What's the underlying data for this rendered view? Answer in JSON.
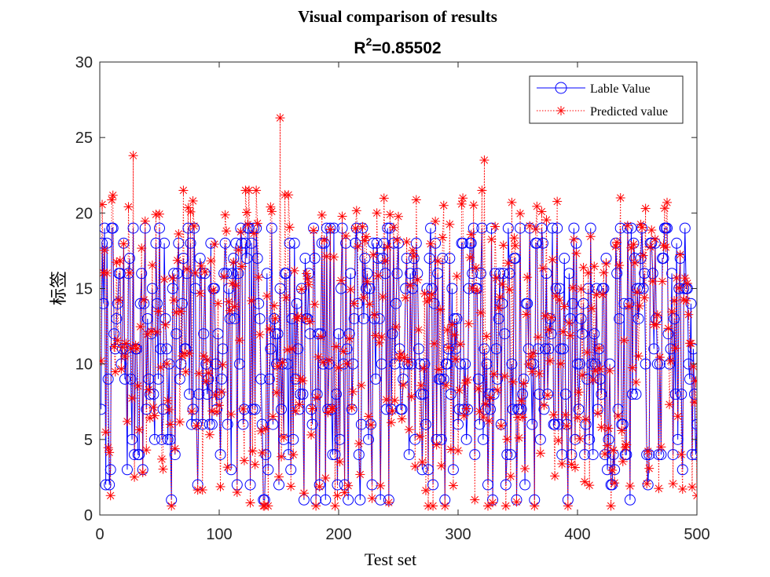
{
  "chart_data": {
    "type": "line",
    "title": "Visual comparison of results",
    "subtitle_prefix": "R",
    "subtitle_sup": "2",
    "subtitle_value": "=0.85502",
    "xlabel": "Test set",
    "ylabel": "标签",
    "xlim": [
      0,
      500
    ],
    "ylim": [
      0,
      30
    ],
    "xticks": [
      "0",
      "100",
      "200",
      "300",
      "400",
      "500"
    ],
    "yticks": [
      "0",
      "5",
      "10",
      "15",
      "20",
      "25",
      "30"
    ],
    "grid": false,
    "legend_position": "top-right",
    "series": [
      {
        "name": "Lable Value",
        "color": "#0000ff",
        "marker": "circle",
        "line": "solid",
        "generator": {
          "seed": 7,
          "count": 500,
          "levels": [
            1,
            2,
            3,
            4,
            5,
            6,
            7,
            8,
            9,
            10,
            11,
            12,
            13,
            14,
            15,
            16,
            17,
            18,
            19
          ],
          "weights": [
            3,
            4,
            3,
            5,
            4,
            5,
            6,
            6,
            4,
            6,
            6,
            4,
            6,
            5,
            7,
            7,
            6,
            8,
            8
          ]
        }
      },
      {
        "name": "Predicted value",
        "color": "#ff0000",
        "marker": "asterisk",
        "line": "dotted",
        "generator": {
          "seed": 19,
          "noise_sd": 1.9
        },
        "highlights": [
          {
            "x": 28,
            "y": 23.8
          },
          {
            "x": 151,
            "y": 26.3
          },
          {
            "x": 155,
            "y": 21.2
          },
          {
            "x": 158,
            "y": 21.2
          },
          {
            "x": 322,
            "y": 23.5
          },
          {
            "x": 345,
            "y": 20.7
          },
          {
            "x": 457,
            "y": 20.3
          },
          {
            "x": 288,
            "y": 20.5
          },
          {
            "x": 78,
            "y": 20.8
          },
          {
            "x": 232,
            "y": 20.0
          },
          {
            "x": 143,
            "y": 20.4
          }
        ]
      }
    ]
  }
}
